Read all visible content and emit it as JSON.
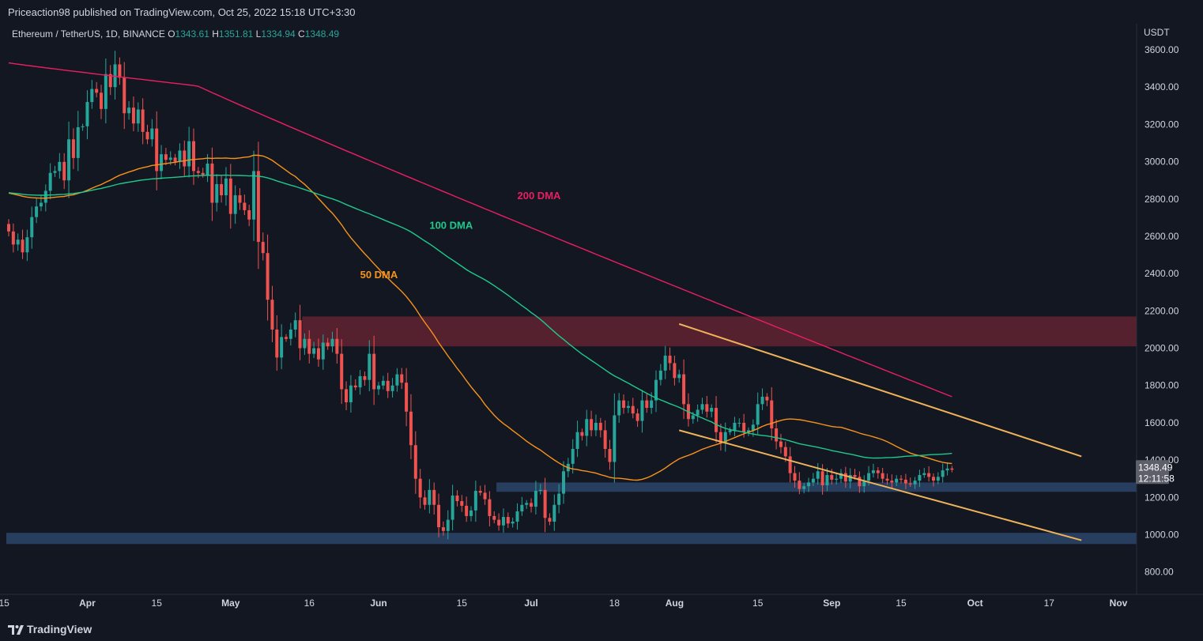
{
  "header": {
    "published": "Priceaction98 published on TradingView.com, Oct 25, 2022 15:18 UTC+3:30",
    "symbol": "Ethereum / TetherUS, 1D, BINANCE",
    "o_label": "O",
    "o_value": "1343.61",
    "h_label": "H",
    "h_value": "1351.81",
    "l_label": "L",
    "l_value": "1334.94",
    "c_label": "C",
    "c_value": "1348.49"
  },
  "colors": {
    "background": "#131722",
    "bull": "#26a69a",
    "bear": "#ef5350",
    "ma50": "#f7931a",
    "ma100": "#1ec98d",
    "ma200": "#e91e63",
    "channel": "#f0b35a",
    "resistance_zone": "#5e2230",
    "support_zone": "#2a4365"
  },
  "footer": {
    "brand": "TradingView"
  },
  "chart_data": {
    "type": "candlestick",
    "currency": "USDT",
    "ylim": [
      680,
      3740
    ],
    "y_ticks": [
      "800.00",
      "1000.00",
      "1200.00",
      "1400.00",
      "1600.00",
      "1800.00",
      "2000.00",
      "2200.00",
      "2400.00",
      "2600.00",
      "2800.00",
      "3000.00",
      "3200.00",
      "3400.00",
      "3600.00"
    ],
    "x_ticks": [
      "15",
      "Apr",
      "15",
      "May",
      "16",
      "Jun",
      "15",
      "Jul",
      "18",
      "Aug",
      "15",
      "Sep",
      "15",
      "Oct",
      "17",
      "Nov"
    ],
    "last_price": "1348.49",
    "countdown": "12:11:58",
    "annotations": [
      {
        "text": "200 DMA",
        "color": "#e91e63",
        "price": 2800,
        "day": 110
      },
      {
        "text": "100 DMA",
        "color": "#1ec98d",
        "price": 2640,
        "day": 91
      },
      {
        "text": "50 DMA",
        "color": "#f7931a",
        "price": 2375,
        "day": 76
      }
    ],
    "zones": [
      {
        "name": "resistance",
        "from": 2010,
        "to": 2170,
        "start_day": 64
      },
      {
        "name": "support",
        "from": 1230,
        "to": 1280,
        "start_day": 106
      },
      {
        "name": "support",
        "from": 950,
        "to": 1010,
        "start_day": 0
      }
    ],
    "channel_lines": [
      {
        "from_day": 145,
        "from_price": 2130,
        "to_day": 232,
        "to_price": 1420
      },
      {
        "from_day": 145,
        "from_price": 1560,
        "to_day": 232,
        "to_price": 970
      }
    ],
    "closes": [
      2626,
      2556,
      2582,
      2514,
      2595,
      2703,
      2760,
      2780,
      2844,
      2940,
      2950,
      2999,
      2900,
      3120,
      3020,
      3185,
      3190,
      3320,
      3390,
      3370,
      3283,
      3470,
      3400,
      3522,
      3450,
      3260,
      3290,
      3205,
      3280,
      3160,
      3120,
      3178,
      2950,
      3040,
      3010,
      3022,
      3000,
      3060,
      2975,
      3110,
      2950,
      2940,
      2930,
      2990,
      2780,
      2880,
      2820,
      2910,
      2720,
      2820,
      2780,
      2740,
      2690,
      2950,
      2570,
      2510,
      2260,
      2100,
      1950,
      2060,
      2050,
      2100,
      2150,
      2000,
      2050,
      1970,
      2000,
      1940,
      2030,
      2010,
      2050,
      1970,
      1780,
      1710,
      1800,
      1790,
      1850,
      1830,
      1970,
      1780,
      1800,
      1825,
      1770,
      1800,
      1860,
      1815,
      1660,
      1480,
      1300,
      1200,
      1160,
      1240,
      1160,
      1040,
      1020,
      1080,
      1210,
      1180,
      1155,
      1100,
      1130,
      1235,
      1225,
      1190,
      1100,
      1080,
      1050,
      1095,
      1060,
      1070,
      1125,
      1160,
      1170,
      1150,
      1235,
      1240,
      1090,
      1070,
      1160,
      1220,
      1340,
      1380,
      1460,
      1550,
      1530,
      1620,
      1560,
      1600,
      1560,
      1460,
      1390,
      1640,
      1720,
      1680,
      1690,
      1650,
      1610,
      1720,
      1680,
      1720,
      1830,
      1880,
      1960,
      1920,
      1840,
      1860,
      1700,
      1620,
      1640,
      1670,
      1700,
      1660,
      1680,
      1550,
      1490,
      1550,
      1560,
      1600,
      1600,
      1550,
      1560,
      1590,
      1700,
      1740,
      1720,
      1570,
      1500,
      1470,
      1420,
      1330,
      1290,
      1245,
      1260,
      1280,
      1300,
      1340,
      1265,
      1320,
      1295,
      1300,
      1330,
      1285,
      1320,
      1310,
      1260,
      1290,
      1330,
      1345,
      1330,
      1300,
      1290,
      1280,
      1300,
      1295,
      1275,
      1270,
      1290,
      1320,
      1330,
      1310,
      1290,
      1310,
      1345,
      1355,
      1348.49
    ],
    "ma_200_start": 3530,
    "ma_200_end": 1740,
    "series": [
      {
        "name": "50 DMA"
      },
      {
        "name": "100 DMA"
      },
      {
        "name": "200 DMA"
      }
    ]
  }
}
